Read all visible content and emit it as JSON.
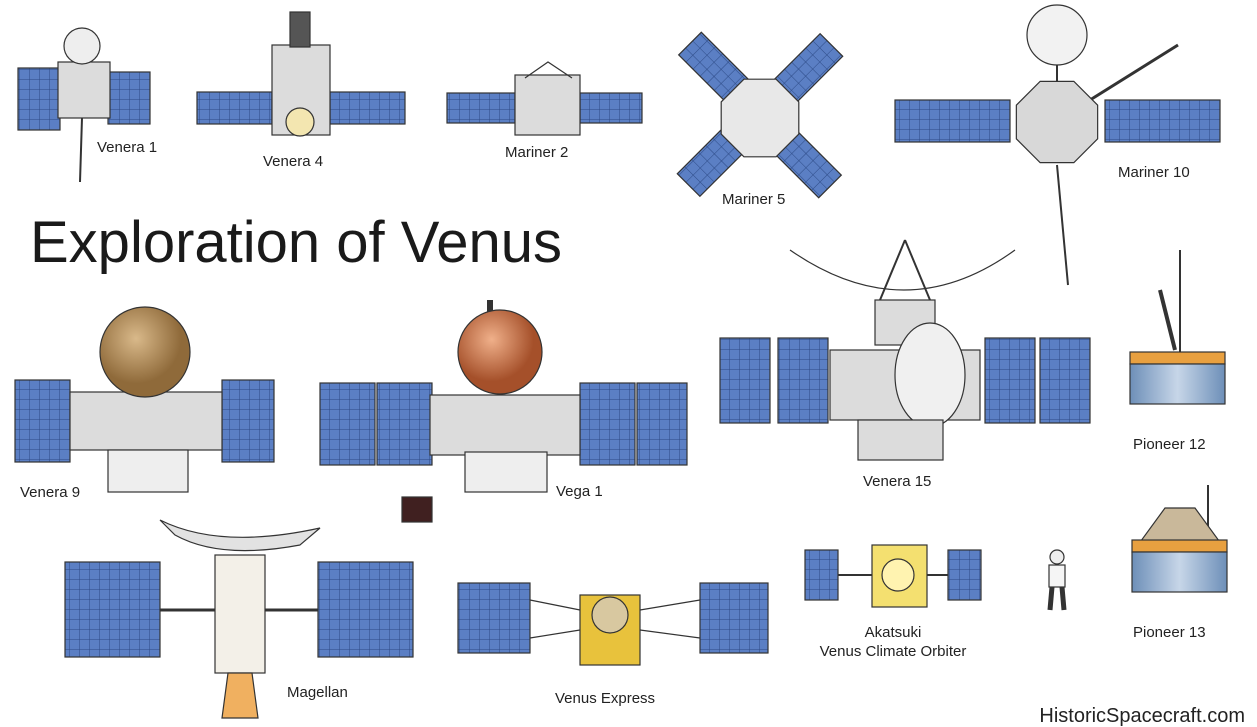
{
  "title": "Exploration of Venus",
  "spacecraft": [
    {
      "name": "Venera 1"
    },
    {
      "name": "Venera 4"
    },
    {
      "name": "Mariner 2"
    },
    {
      "name": "Mariner 5"
    },
    {
      "name": "Mariner 10"
    },
    {
      "name": "Venera 15"
    },
    {
      "name": "Pioneer 12"
    },
    {
      "name": "Venera 9"
    },
    {
      "name": "Vega 1"
    },
    {
      "name": "Magellan"
    },
    {
      "name": "Venus Express"
    },
    {
      "name": "Akatsuki",
      "subtitle": "Venus Climate Orbiter"
    },
    {
      "name": "Pioneer 13"
    }
  ],
  "credit": "HistoricSpacecraft.com"
}
